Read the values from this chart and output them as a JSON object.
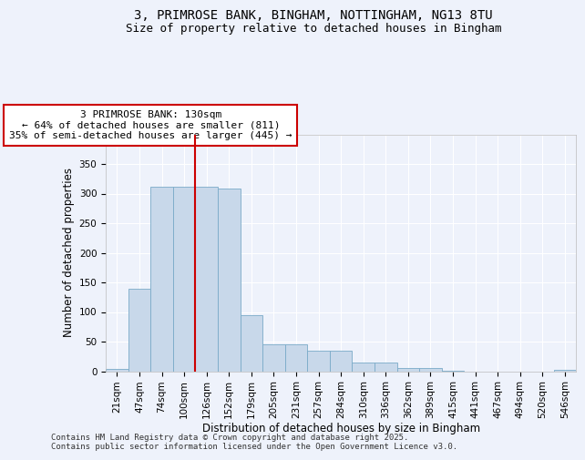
{
  "title_line1": "3, PRIMROSE BANK, BINGHAM, NOTTINGHAM, NG13 8TU",
  "title_line2": "Size of property relative to detached houses in Bingham",
  "xlabel": "Distribution of detached houses by size in Bingham",
  "ylabel": "Number of detached properties",
  "bar_color": "#c8d8ea",
  "bar_edge_color": "#7aaac8",
  "vline_color": "#cc0000",
  "vline_x": 3.5,
  "annotation_text": "3 PRIMROSE BANK: 130sqm\n← 64% of detached houses are smaller (811)\n35% of semi-detached houses are larger (445) →",
  "annotation_box_color": "#ffffff",
  "annotation_box_edge_color": "#cc0000",
  "categories": [
    "21sqm",
    "47sqm",
    "74sqm",
    "100sqm",
    "126sqm",
    "152sqm",
    "179sqm",
    "205sqm",
    "231sqm",
    "257sqm",
    "284sqm",
    "310sqm",
    "336sqm",
    "362sqm",
    "389sqm",
    "415sqm",
    "441sqm",
    "467sqm",
    "494sqm",
    "520sqm",
    "546sqm"
  ],
  "values": [
    4,
    140,
    311,
    311,
    311,
    308,
    94,
    46,
    45,
    34,
    35,
    15,
    15,
    6,
    6,
    1,
    0,
    0,
    0,
    0,
    2
  ],
  "ylim": [
    0,
    400
  ],
  "yticks": [
    0,
    50,
    100,
    150,
    200,
    250,
    300,
    350,
    400
  ],
  "background_color": "#eef2fb",
  "grid_color": "#ffffff",
  "footer_text": "Contains HM Land Registry data © Crown copyright and database right 2025.\nContains public sector information licensed under the Open Government Licence v3.0.",
  "title_fontsize": 10,
  "subtitle_fontsize": 9,
  "axis_label_fontsize": 8.5,
  "tick_fontsize": 7.5,
  "annotation_fontsize": 8,
  "footer_fontsize": 6.5
}
